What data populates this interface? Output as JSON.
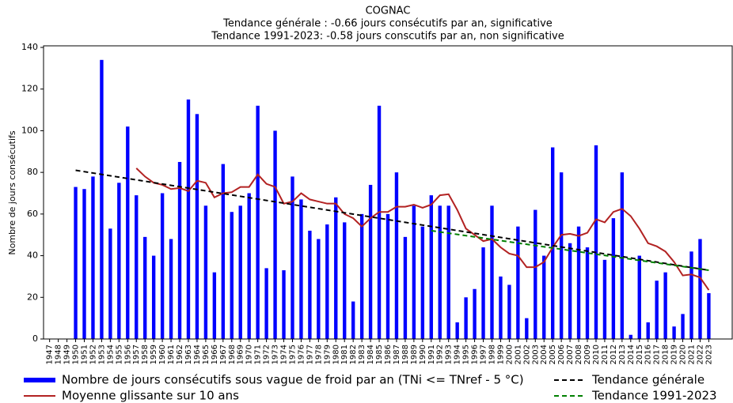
{
  "chart_data": {
    "type": "bar",
    "title": "COGNAC",
    "subtitle": [
      "Tendance générale : -0.66 jours consécutifs par an, significative",
      "Tendance 1991-2023: -0.58 jours conscutifs par an, non significative"
    ],
    "ylabel": "Nombre de jours consécutifs",
    "x": [
      1947,
      1948,
      1949,
      1950,
      1951,
      1952,
      1953,
      1954,
      1955,
      1956,
      1957,
      1958,
      1959,
      1960,
      1961,
      1962,
      1963,
      1964,
      1965,
      1966,
      1967,
      1968,
      1969,
      1970,
      1971,
      1972,
      1973,
      1974,
      1975,
      1976,
      1977,
      1978,
      1979,
      1980,
      1981,
      1982,
      1983,
      1984,
      1985,
      1986,
      1987,
      1988,
      1989,
      1990,
      1991,
      1992,
      1993,
      1994,
      1995,
      1996,
      1997,
      1998,
      1999,
      2000,
      2001,
      2002,
      2003,
      2004,
      2005,
      2006,
      2007,
      2008,
      2009,
      2010,
      2011,
      2012,
      2013,
      2014,
      2015,
      2016,
      2017,
      2018,
      2019,
      2020,
      2021,
      2022,
      2023
    ],
    "xlim": [
      1946.3,
      2025.7
    ],
    "ylim": [
      0,
      140
    ],
    "yticks": [
      0,
      20,
      40,
      60,
      80,
      100,
      120,
      140
    ],
    "legend": "bottom",
    "series": [
      {
        "type": "bar",
        "name": "Nombre de jours consécutifs sous vague de froid par an (TNi <= TNref - 5 °C)",
        "color": "#0000ff",
        "values": [
          0,
          0,
          0,
          73,
          72,
          78,
          134,
          53,
          75,
          102,
          69,
          49,
          40,
          70,
          48,
          85,
          115,
          108,
          64,
          32,
          84,
          61,
          64,
          70,
          112,
          34,
          100,
          33,
          78,
          67,
          52,
          48,
          55,
          68,
          56,
          18,
          60,
          74,
          112,
          60,
          80,
          49,
          64,
          54,
          69,
          64,
          64,
          8,
          20,
          24,
          44,
          64,
          30,
          26,
          54,
          10,
          62,
          40,
          92,
          80,
          46,
          54,
          44,
          93,
          38,
          58,
          80,
          2,
          40,
          8,
          28,
          32,
          6,
          12,
          42,
          48,
          22
        ]
      },
      {
        "type": "line",
        "name": "Moyenne glissante sur 10 ans",
        "color": "#b22222",
        "values": [
          null,
          null,
          null,
          null,
          null,
          null,
          null,
          null,
          null,
          null,
          82,
          78,
          75,
          74,
          72,
          72.5,
          71,
          76,
          75,
          68,
          70,
          70.5,
          73,
          73,
          79,
          74.5,
          73,
          65,
          66,
          70,
          67,
          66,
          65,
          65,
          60,
          58,
          54,
          58,
          61,
          61,
          63.5,
          63.5,
          64.5,
          63,
          64.5,
          69,
          69.5,
          62,
          53,
          50,
          47,
          48,
          44,
          41,
          40,
          34.5,
          34.5,
          37,
          44,
          50,
          50.5,
          49.5,
          51,
          57.5,
          56,
          61,
          62.5,
          59,
          53,
          46,
          44.5,
          42,
          37,
          30.5,
          31,
          29.5,
          23.5
        ]
      },
      {
        "type": "trend",
        "name": "Tendance générale",
        "color": "#000000",
        "x": [
          1950,
          2023
        ],
        "values": [
          81,
          33
        ]
      },
      {
        "type": "trend",
        "name": "Tendance 1991-2023",
        "color": "#008000",
        "x": [
          1991,
          2023
        ],
        "values": [
          52,
          33
        ]
      }
    ]
  }
}
